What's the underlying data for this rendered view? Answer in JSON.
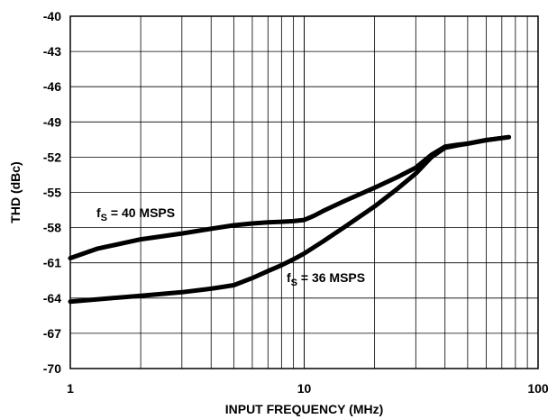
{
  "chart_data": {
    "type": "line",
    "title": "",
    "xlabel": "INPUT FREQUENCY (MHz)",
    "ylabel": "THD (dBc)",
    "x_scale": "log",
    "xlim": [
      1,
      100
    ],
    "ylim": [
      -70,
      -40
    ],
    "grid": true,
    "x_ticks": [
      "1",
      "10",
      "100"
    ],
    "y_ticks": [
      "-40",
      "-43",
      "-46",
      "-49",
      "-52",
      "-55",
      "-58",
      "-61",
      "-64",
      "-67",
      "-70"
    ],
    "series": [
      {
        "name": "fS = 40 MSPS",
        "label_main": "f",
        "label_sub": "S",
        "label_rest": " = 40 MSPS",
        "x": [
          1,
          1.3,
          2,
          3,
          4,
          5,
          6,
          7,
          8,
          9,
          10,
          11,
          12,
          15,
          20,
          25,
          30,
          35,
          40,
          45,
          50,
          60,
          75
        ],
        "y": [
          -60.6,
          -59.8,
          -59.0,
          -58.5,
          -58.1,
          -57.8,
          -57.65,
          -57.55,
          -57.5,
          -57.45,
          -57.35,
          -57.0,
          -56.6,
          -55.7,
          -54.6,
          -53.7,
          -52.9,
          -51.8,
          -51.1,
          -50.95,
          -50.85,
          -50.55,
          -50.3
        ]
      },
      {
        "name": "fS = 36 MSPS",
        "label_main": "f",
        "label_sub": "S",
        "label_rest": " = 36 MSPS",
        "x": [
          1,
          2,
          3,
          4,
          5,
          6,
          7,
          8,
          9,
          10,
          12,
          15,
          20,
          25,
          30,
          35,
          40,
          45,
          50,
          60,
          75
        ],
        "y": [
          -64.3,
          -63.8,
          -63.5,
          -63.2,
          -62.9,
          -62.3,
          -61.7,
          -61.2,
          -60.7,
          -60.2,
          -59.2,
          -57.9,
          -56.2,
          -54.7,
          -53.4,
          -52.0,
          -51.2,
          -51.0,
          -50.85,
          -50.55,
          -50.3
        ]
      }
    ]
  }
}
